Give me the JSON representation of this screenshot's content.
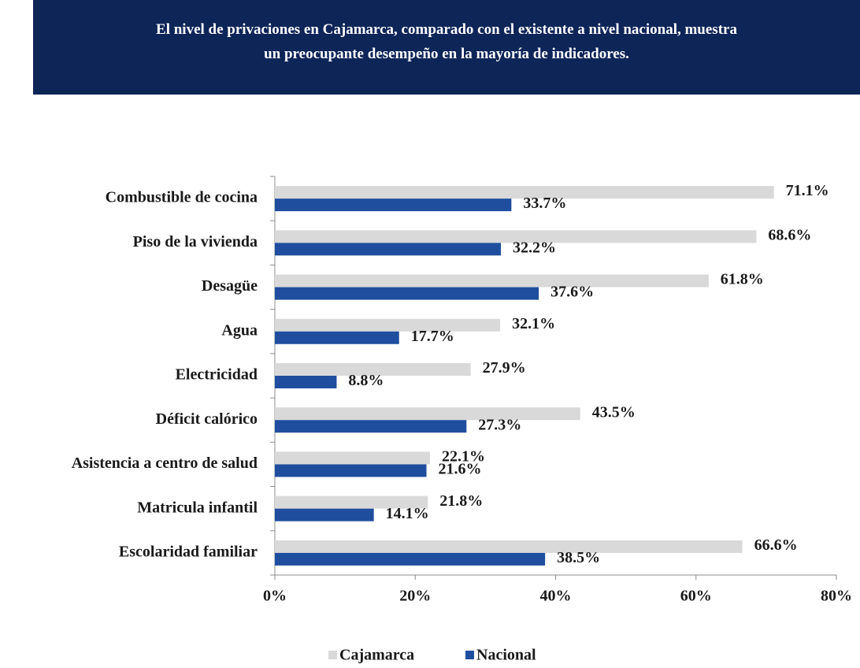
{
  "chart_data": {
    "type": "bar",
    "orientation": "horizontal",
    "title": [
      "El nivel de privaciones en Cajamarca, comparado con el existente a nivel nacional, muestra",
      "un preocupante desempeño en la mayoría de indicadores."
    ],
    "categories": [
      "Combustible de cocina",
      "Piso de la vivienda",
      "Desagüe",
      "Agua",
      "Electricidad",
      "Déficit calórico",
      "Asistencia a centro de salud",
      "Matricula infantil",
      "Escolaridad familiar"
    ],
    "series": [
      {
        "name": "Cajamarca",
        "color": "#d9d9d9",
        "values": [
          71.1,
          68.6,
          61.8,
          32.1,
          27.9,
          43.5,
          22.1,
          21.8,
          66.6
        ],
        "value_labels": [
          "71.1%",
          "68.6%",
          "61.8%",
          "32.1%",
          "27.9%",
          "43.5%",
          "22.1%",
          "21.8%",
          "66.6%"
        ]
      },
      {
        "name": "Nacional",
        "color": "#1f4e9e",
        "values": [
          33.7,
          32.2,
          37.6,
          17.7,
          8.8,
          27.3,
          21.6,
          14.1,
          38.5
        ],
        "value_labels": [
          "33.7%",
          "32.2%",
          "37.6%",
          "17.7%",
          "8.8%",
          "27.3%",
          "21.6%",
          "14.1%",
          "38.5%"
        ]
      }
    ],
    "xlim": [
      0,
      80
    ],
    "xticks": [
      {
        "value": 0,
        "label": "0%"
      },
      {
        "value": 20,
        "label": "20%"
      },
      {
        "value": 40,
        "label": "40%"
      },
      {
        "value": 60,
        "label": "60%"
      },
      {
        "value": 80,
        "label": "80%"
      }
    ],
    "grid": false,
    "legend": "bottom"
  }
}
